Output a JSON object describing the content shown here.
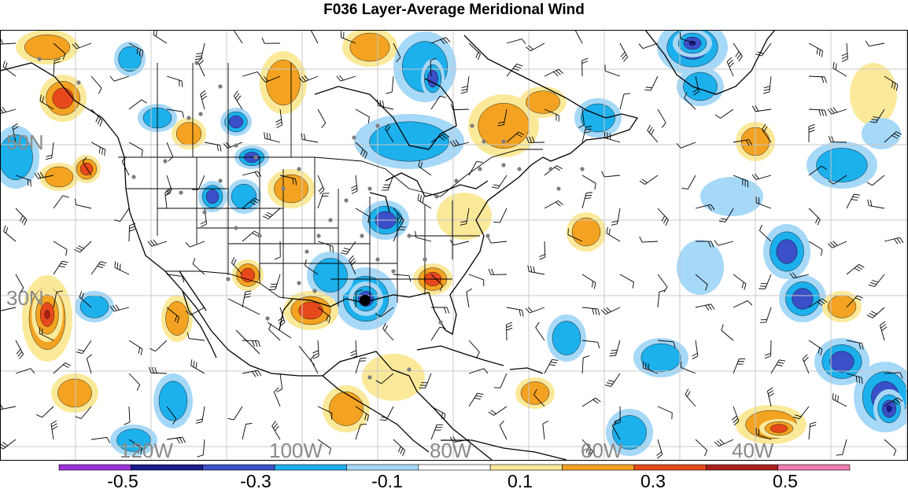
{
  "title": "F036 Layer-Average Meridional Wind",
  "map": {
    "lat_labels": [
      "50N",
      "30N"
    ],
    "lon_labels": [
      "120W",
      "100W",
      "80W",
      "60W",
      "40W"
    ],
    "label_color": "#8a8a8a"
  },
  "colorbar": {
    "tick_labels": [
      "-0.5",
      "-0.3",
      "-0.1",
      "0.1",
      "0.3",
      "0.5"
    ],
    "colors": [
      "#9b30d8",
      "#1a1a8c",
      "#3a4fc8",
      "#1cb0ec",
      "#a6d8f8",
      "#ffffff",
      "#fbe99a",
      "#f3a321",
      "#e8491c",
      "#a8201c",
      "#f07cae"
    ]
  },
  "palette": {
    "neg1": "#a6d8f8",
    "neg2": "#1cb0ec",
    "neg3": "#3a4fc8",
    "neg4": "#1a1a8c",
    "pos1": "#fbe99a",
    "pos2": "#f3a321",
    "pos3": "#e8491c",
    "pos4": "#a8201c"
  }
}
